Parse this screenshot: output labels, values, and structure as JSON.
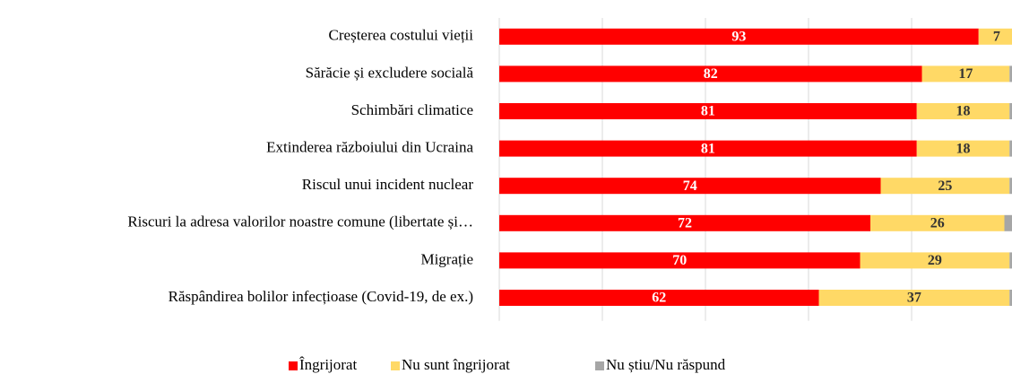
{
  "chart_data": {
    "type": "stacked_barh",
    "categories": [
      "Creșterea costului vieții",
      "Sărăcie și excludere socială",
      "Schimbări climatice",
      "Extinderea războiului din Ucraina",
      "Riscul unui incident nuclear",
      "Riscuri la adresa valorilor noastre comune (libertate și…",
      "Migrație",
      "Răspândirea bolilor infecțioase (Covid-19, de ex.)"
    ],
    "series": [
      {
        "name": "Îngrijorat",
        "color": "#ff0000",
        "values": [
          93,
          82,
          81,
          81,
          74,
          72,
          70,
          62
        ]
      },
      {
        "name": "Nu sunt îngrijorat",
        "color": "#ffd966",
        "values": [
          7,
          17,
          18,
          18,
          25,
          26,
          29,
          37
        ]
      },
      {
        "name": "Nu știu/Nu răspund",
        "color": "#a6a6a6",
        "values": [
          0,
          1,
          1,
          1,
          1,
          2,
          1,
          1
        ]
      }
    ],
    "xlim": [
      0,
      100
    ],
    "xticks": [
      0,
      20,
      40,
      60,
      80,
      100
    ],
    "grid": true,
    "legend": "bottom"
  }
}
